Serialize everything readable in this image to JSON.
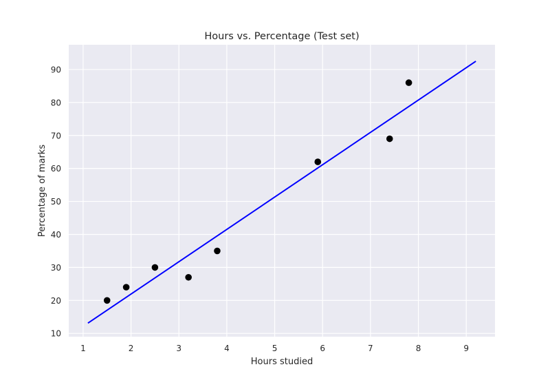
{
  "chart_data": {
    "type": "scatter",
    "title": "Hours vs. Percentage (Test set)",
    "xlabel": "Hours studied",
    "ylabel": "Percentage of marks",
    "xlim": [
      0.7,
      9.6
    ],
    "ylim": [
      9,
      97.5
    ],
    "xticks": [
      1,
      2,
      3,
      4,
      5,
      6,
      7,
      8,
      9
    ],
    "yticks": [
      10,
      20,
      30,
      40,
      50,
      60,
      70,
      80,
      90
    ],
    "grid": true,
    "background": "#eaeaf2",
    "points": {
      "color": "#000000",
      "x": [
        1.5,
        1.9,
        2.5,
        3.2,
        3.8,
        5.9,
        7.4,
        7.8
      ],
      "y": [
        20,
        24,
        30,
        27,
        35,
        62,
        69,
        86
      ]
    },
    "regression_line": {
      "color": "#0000ff",
      "x": [
        1.1,
        9.2
      ],
      "y": [
        13.1,
        92.5
      ]
    }
  }
}
